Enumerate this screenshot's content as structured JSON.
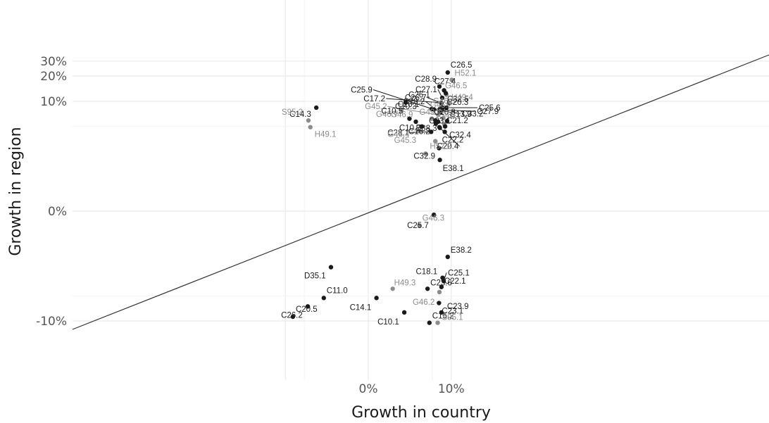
{
  "chart_data": {
    "type": "scatter",
    "xlabel": "Growth in country",
    "ylabel": "Growth in region",
    "x_ticks": [
      "0%",
      "10%"
    ],
    "y_ticks": [
      "30%",
      "20%",
      "10%",
      "0%",
      "-10%"
    ],
    "x_scale": "pseudo-log (asinh)",
    "y_scale": "pseudo-log (asinh)",
    "grid": true,
    "reference_line": {
      "type": "y = x",
      "note": "diagonal line through origin"
    },
    "groups": {
      "C": {
        "color": "#1a1a1a",
        "label_color": "#1a1a1a"
      },
      "D": {
        "color": "#1a1a1a",
        "label_color": "#1a1a1a"
      },
      "E": {
        "color": "#1a1a1a",
        "label_color": "#1a1a1a"
      },
      "G": {
        "color": "#8c8c8c",
        "label_color": "#8c8c8c"
      },
      "H": {
        "color": "#8c8c8c",
        "label_color": "#8c8c8c"
      },
      "S": {
        "color": "#8c8c8c",
        "label_color": "#8c8c8c"
      }
    },
    "points": [
      {
        "label": "C26.5",
        "x": 8.8,
        "y": 22.0
      },
      {
        "label": "H52.1",
        "x": 10.2,
        "y": 18.0
      },
      {
        "label": "C28.9",
        "x": 6.5,
        "y": 15.0
      },
      {
        "label": "C27.4",
        "x": 7.7,
        "y": 13.5
      },
      {
        "label": "G46.5",
        "x": 8.4,
        "y": 12.0
      },
      {
        "label": "C32.5",
        "x": 8.2,
        "y": 12.5
      },
      {
        "label": "C27.1",
        "x": 7.2,
        "y": 11.0
      },
      {
        "label": "H49.4",
        "x": 9.1,
        "y": 9.4
      },
      {
        "label": "C26.7",
        "x": 7.0,
        "y": 9.5
      },
      {
        "label": "C26.1",
        "x": 1.8,
        "y": 9.7
      },
      {
        "label": "C17.2",
        "x": 6.9,
        "y": 9.6
      },
      {
        "label": "C25.9",
        "x": 5.3,
        "y": 8.0
      },
      {
        "label": "C14.3",
        "x": -3.2,
        "y": 8.4
      },
      {
        "label": "G46.6",
        "x": 7.0,
        "y": 8.5
      },
      {
        "label": "C20.3",
        "x": 7.3,
        "y": 8.4
      },
      {
        "label": "C25.6",
        "x": 8.4,
        "y": 8.4
      },
      {
        "label": "C10.3",
        "x": 4.9,
        "y": 8.1
      },
      {
        "label": "C20.1",
        "x": 6.6,
        "y": 8.1
      },
      {
        "label": "C27.9",
        "x": 7.1,
        "y": 7.9
      },
      {
        "label": "G46.7",
        "x": 1.5,
        "y": 7.9
      },
      {
        "label": "C33.2",
        "x": 6.8,
        "y": 7.7
      },
      {
        "label": "G45.2",
        "x": 6.8,
        "y": 7.6
      },
      {
        "label": "C28.2",
        "x": 6.6,
        "y": 7.3
      },
      {
        "label": "G45.2b",
        "x": 6.2,
        "y": 6.9
      },
      {
        "label": "G49.1",
        "x": 7.5,
        "y": 6.3
      },
      {
        "label": "G46.9",
        "x": 4.9,
        "y": 6.2
      },
      {
        "label": "C10.5",
        "x": 2.1,
        "y": 6.2
      },
      {
        "label": "S95.2",
        "x": -4.3,
        "y": 5.9
      },
      {
        "label": "C10.8",
        "x": 5.6,
        "y": 5.9
      },
      {
        "label": "C13.9",
        "x": 8.6,
        "y": 5.8
      },
      {
        "label": "E38.3",
        "x": 2.7,
        "y": 5.7
      },
      {
        "label": "C21.2",
        "x": 6.2,
        "y": 5.7
      },
      {
        "label": "G46.1",
        "x": 7.8,
        "y": 5.3
      },
      {
        "label": "C10.7",
        "x": 5.7,
        "y": 5.4
      },
      {
        "label": "C33.1",
        "x": 3.4,
        "y": 5.0
      },
      {
        "label": "C32.4",
        "x": 8.0,
        "y": 5.0
      },
      {
        "label": "H49.1",
        "x": -4.0,
        "y": 4.9
      },
      {
        "label": "C16.2",
        "x": 6.5,
        "y": 4.9
      },
      {
        "label": "C20.4",
        "x": 6.6,
        "y": 4.8
      },
      {
        "label": "G45.3",
        "x": 3.1,
        "y": 4.4
      },
      {
        "label": "C28.1",
        "x": 4.8,
        "y": 4.3
      },
      {
        "label": "C22.2",
        "x": 7.9,
        "y": 4.3
      },
      {
        "label": "G46.4",
        "x": 5.6,
        "y": 3.3
      },
      {
        "label": "C32.9",
        "x": 6.4,
        "y": 2.7
      },
      {
        "label": "H52.2",
        "x": 3.9,
        "y": 2.3
      },
      {
        "label": "E38.1",
        "x": 6.6,
        "y": 1.9
      },
      {
        "label": "C25.7",
        "x": 5.3,
        "y": -0.1
      },
      {
        "label": "G46.3",
        "x": 3.1,
        "y": -0.4
      },
      {
        "label": "E38.2",
        "x": 8.8,
        "y": -1.6
      },
      {
        "label": "D35.1",
        "x": -1.8,
        "y": -2.2
      },
      {
        "label": "C18.1",
        "x": 7.3,
        "y": -3.0
      },
      {
        "label": "C25.1",
        "x": 7.6,
        "y": -3.3
      },
      {
        "label": "C22.1",
        "x": 7.0,
        "y": -3.9
      },
      {
        "label": "C23.6",
        "x": 4.2,
        "y": -4.1
      },
      {
        "label": "H49.3",
        "x": 1.0,
        "y": -4.1
      },
      {
        "label": "G46.2",
        "x": 6.5,
        "y": -4.5
      },
      {
        "label": "C11.0",
        "x": -2.4,
        "y": -5.3
      },
      {
        "label": "C14.1",
        "x": 0.3,
        "y": -5.3
      },
      {
        "label": "C23.1",
        "x": 6.4,
        "y": -6.1
      },
      {
        "label": "C26.2",
        "x": -4.4,
        "y": -6.7
      },
      {
        "label": "C10.1",
        "x": 1.7,
        "y": -7.9
      },
      {
        "label": "C23.9",
        "x": 7.0,
        "y": -7.9
      },
      {
        "label": "C20.5",
        "x": -7.6,
        "y": -8.9
      },
      {
        "label": "C15.2",
        "x": 4.5,
        "y": -10.5
      },
      {
        "label": "S95.1",
        "x": 6.1,
        "y": -10.5
      }
    ]
  }
}
